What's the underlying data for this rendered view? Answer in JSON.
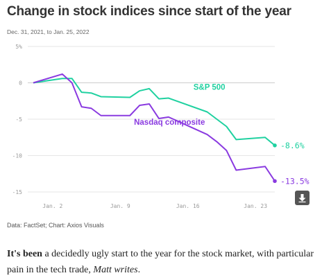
{
  "title": "Change in stock indices since start of the year",
  "subtitle": "Dec. 31, 2021, to Jan. 25, 2022",
  "source": "Data: FactSet; Chart: Axios Visuals",
  "body": {
    "lead": "It's been",
    "rest": " a decidedly ugly start to the year for the stock market, with particular pain in the tech trade, ",
    "italic": "Matt writes",
    "end": "."
  },
  "download_icon": "download-arrow-icon",
  "chart_data": {
    "type": "line",
    "ylim": [
      -15,
      5
    ],
    "yticks": [
      5,
      0,
      -5,
      -10,
      -15
    ],
    "ytick_labels": [
      "5%",
      "0",
      "-5",
      "-10",
      "-15"
    ],
    "xlim": [
      "2021-12-31",
      "2022-01-25"
    ],
    "xticks": [
      "2022-01-02",
      "2022-01-09",
      "2022-01-16",
      "2022-01-23"
    ],
    "xtick_labels": [
      "Jan. 2",
      "Jan. 9",
      "Jan. 16",
      "Jan. 23"
    ],
    "grid": "horizontal",
    "series": [
      {
        "name": "S&P 500",
        "color": "#1fd1a0",
        "end_label": "-8.6%",
        "points": [
          [
            "2021-12-31",
            0
          ],
          [
            "2022-01-03",
            0.6
          ],
          [
            "2022-01-04",
            0.6
          ],
          [
            "2022-01-05",
            -1.3
          ],
          [
            "2022-01-06",
            -1.4
          ],
          [
            "2022-01-07",
            -1.9
          ],
          [
            "2022-01-10",
            -2.0
          ],
          [
            "2022-01-11",
            -1.1
          ],
          [
            "2022-01-12",
            -0.8
          ],
          [
            "2022-01-13",
            -2.2
          ],
          [
            "2022-01-14",
            -2.1
          ],
          [
            "2022-01-18",
            -4.0
          ],
          [
            "2022-01-19",
            -5.0
          ],
          [
            "2022-01-20",
            -6.0
          ],
          [
            "2022-01-21",
            -7.8
          ],
          [
            "2022-01-24",
            -7.5
          ],
          [
            "2022-01-25",
            -8.6
          ]
        ]
      },
      {
        "name": "Nasdaq composite",
        "color": "#8a3ae0",
        "end_label": "-13.5%",
        "points": [
          [
            "2021-12-31",
            0
          ],
          [
            "2022-01-03",
            1.2
          ],
          [
            "2022-01-04",
            0.0
          ],
          [
            "2022-01-05",
            -3.3
          ],
          [
            "2022-01-06",
            -3.5
          ],
          [
            "2022-01-07",
            -4.5
          ],
          [
            "2022-01-10",
            -4.5
          ],
          [
            "2022-01-11",
            -3.1
          ],
          [
            "2022-01-12",
            -2.9
          ],
          [
            "2022-01-13",
            -4.9
          ],
          [
            "2022-01-14",
            -4.7
          ],
          [
            "2022-01-18",
            -7.1
          ],
          [
            "2022-01-19",
            -8.1
          ],
          [
            "2022-01-20",
            -9.3
          ],
          [
            "2022-01-21",
            -12.0
          ],
          [
            "2022-01-24",
            -11.5
          ],
          [
            "2022-01-25",
            -13.5
          ]
        ]
      }
    ]
  }
}
